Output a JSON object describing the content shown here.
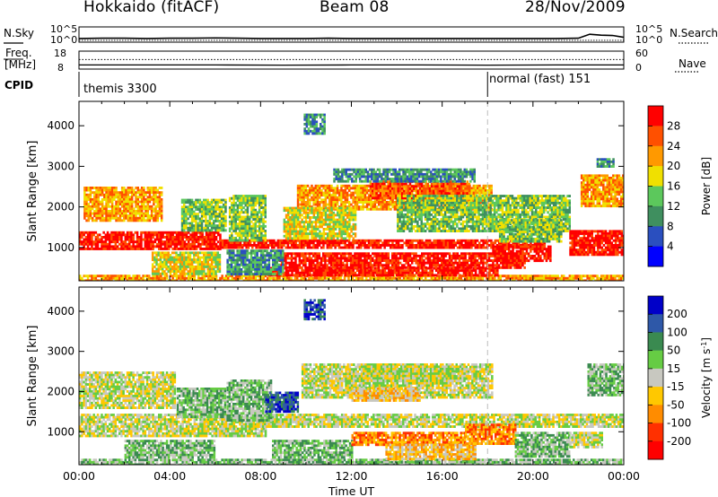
{
  "header": {
    "title": "Hokkaido (fitACF)",
    "beam": "Beam 08",
    "date": "28/Nov/2009"
  },
  "side_panels": {
    "nsky_label": "N.Sky",
    "nsearch_label": "N.Search",
    "freq_label_line1": "Freq.",
    "freq_label_line2": "[MHz]",
    "nave_label": "Nave",
    "cpid_label": "CPID",
    "noise_ticks_left": [
      "10^5",
      "10^0"
    ],
    "noise_ticks_right": [
      "10^5",
      "10^0"
    ],
    "freq_ticks": [
      "18",
      "8"
    ],
    "nave_ticks": [
      "60",
      "0"
    ]
  },
  "cpid_segments": [
    {
      "label": "themis 3300",
      "start_hour": 0,
      "end_hour": 18
    },
    {
      "label": "normal (fast) 151",
      "start_hour": 18,
      "end_hour": 24
    }
  ],
  "colors": {
    "power_scale": [
      "#0000ff",
      "#2a4fbf",
      "#3f8f5f",
      "#5cc85c",
      "#f0e000",
      "#ff9900",
      "#ff5000",
      "#ff0000"
    ],
    "velocity_scale": [
      "#0000c8",
      "#2e58a8",
      "#3a8a50",
      "#66cc44",
      "#c8c8c0",
      "#ffc800",
      "#ff8c00",
      "#ff3000",
      "#ff0000"
    ]
  },
  "chart_data": [
    {
      "type": "line",
      "name": "noise",
      "x": [
        0,
        1,
        2,
        3,
        4,
        5,
        6,
        7,
        8,
        9,
        10,
        11,
        12,
        13,
        14,
        15,
        16,
        17,
        18,
        19,
        20,
        21,
        22,
        22.5,
        23,
        23.5,
        24
      ],
      "series": [
        {
          "name": "N.Sky",
          "values": [
            1.2,
            1.3,
            1.3,
            1.2,
            1.3,
            1.3,
            1.4,
            1.3,
            1.2,
            1.2,
            1.2,
            1.3,
            1.2,
            1.2,
            1.2,
            1.2,
            1.2,
            1.2,
            1.2,
            1.2,
            1.2,
            1.2,
            1.3,
            2.6,
            2.3,
            2.2,
            1.6
          ]
        },
        {
          "name": "N.Search",
          "values": [
            0.6,
            0.6,
            0.6,
            0.6,
            0.6,
            0.6,
            0.6,
            0.6,
            0.6,
            0.6,
            0.6,
            0.6,
            0.6,
            0.6,
            0.6,
            0.6,
            0.6,
            0.6,
            0.6,
            0.6,
            0.6,
            0.6,
            0.6,
            0.6,
            0.6,
            0.6,
            0.6
          ]
        }
      ],
      "ylim": [
        0,
        5
      ],
      "xlim": [
        0,
        24
      ]
    },
    {
      "type": "line",
      "name": "freq-nave",
      "x": [
        0,
        6,
        9,
        12,
        15,
        18,
        21,
        24
      ],
      "series": [
        {
          "name": "Freq.",
          "values": [
            10.3,
            10.3,
            10.2,
            10.3,
            10.3,
            10.2,
            10.3,
            10.3
          ]
        },
        {
          "name": "Nave",
          "values": [
            32,
            32,
            32,
            32,
            32,
            32,
            32,
            32
          ]
        }
      ],
      "ylim": [
        8,
        18
      ],
      "xlim": [
        0,
        24
      ]
    },
    {
      "type": "heatmap",
      "name": "power",
      "ylabel": "Slant Range [km]",
      "colorbar_label": "Power [dB]",
      "colorbar_ticks": [
        "28",
        "24",
        "20",
        "16",
        "12",
        "8",
        "4"
      ],
      "color_bounds": [
        0,
        4,
        8,
        12,
        16,
        20,
        24,
        28,
        32
      ],
      "xlim": [
        0,
        24
      ],
      "ylim": [
        180,
        4600
      ],
      "yticks": [
        1000,
        2000,
        3000,
        4000
      ],
      "regions": [
        {
          "t": [
            0,
            6.2
          ],
          "r": [
            950,
            1400
          ],
          "level": 32
        },
        {
          "t": [
            6.2,
            20.5
          ],
          "r": [
            1000,
            1200
          ],
          "level": 28
        },
        {
          "t": [
            0,
            24
          ],
          "r": [
            200,
            330
          ],
          "level": 22
        },
        {
          "t": [
            0.2,
            3.6
          ],
          "r": [
            1650,
            2500
          ],
          "level": 22
        },
        {
          "t": [
            8.3,
            18.4
          ],
          "r": [
            330,
            520
          ],
          "level": 31
        },
        {
          "t": [
            8.8,
            19.6
          ],
          "r": [
            520,
            880
          ],
          "level": 28
        },
        {
          "t": [
            18.2,
            20.8
          ],
          "r": [
            650,
            1050
          ],
          "level": 29
        },
        {
          "t": [
            21.6,
            24
          ],
          "r": [
            800,
            1430
          ],
          "level": 30
        },
        {
          "t": [
            9.6,
            18.2
          ],
          "r": [
            1950,
            2550
          ],
          "level": 20
        },
        {
          "t": [
            12.8,
            17.2
          ],
          "r": [
            2200,
            2650
          ],
          "level": 26
        },
        {
          "t": [
            6.6,
            8.2
          ],
          "r": [
            1200,
            2300
          ],
          "level": 14
        },
        {
          "t": [
            4.5,
            6.5
          ],
          "r": [
            1400,
            2200
          ],
          "level": 13
        },
        {
          "t": [
            22.1,
            24
          ],
          "r": [
            2000,
            2800
          ],
          "level": 22
        },
        {
          "t": [
            9.0,
            12.2
          ],
          "r": [
            1200,
            2000
          ],
          "level": 16
        },
        {
          "t": [
            3.2,
            6.2
          ],
          "r": [
            350,
            900
          ],
          "level": 18
        },
        {
          "t": [
            6.5,
            9.0
          ],
          "r": [
            350,
            950
          ],
          "level": 10
        },
        {
          "t": [
            14.0,
            21.6
          ],
          "r": [
            1400,
            2300
          ],
          "level": 14
        },
        {
          "t": [
            9.9,
            10.8
          ],
          "r": [
            3800,
            4300
          ],
          "level": 8
        },
        {
          "t": [
            11.2,
            17.4
          ],
          "r": [
            2650,
            2950
          ],
          "level": 10
        },
        {
          "t": [
            18.5,
            21.2
          ],
          "r": [
            1150,
            1700
          ],
          "level": 12
        },
        {
          "t": [
            22.8,
            23.5
          ],
          "r": [
            3000,
            3200
          ],
          "level": 10
        }
      ]
    },
    {
      "type": "heatmap",
      "name": "velocity",
      "ylabel": "Slant Range [km]",
      "xlabel": "Time UT",
      "colorbar_label": "Velocity [m s-1]",
      "colorbar_ticks": [
        "200",
        "100",
        "50",
        "15",
        "-15",
        "-50",
        "-100",
        "-200"
      ],
      "color_bounds": [
        -300,
        -200,
        -100,
        -50,
        -15,
        15,
        50,
        100,
        200,
        300
      ],
      "xlim": [
        0,
        24
      ],
      "xticks": [
        "00:00",
        "04:00",
        "08:00",
        "12:00",
        "16:00",
        "20:00",
        "00:00"
      ],
      "ylim": [
        180,
        4600
      ],
      "yticks": [
        1000,
        2000,
        3000,
        4000
      ],
      "regions": [
        {
          "t": [
            0,
            8.2
          ],
          "r": [
            900,
            1450
          ],
          "level": 0
        },
        {
          "t": [
            0,
            4.2
          ],
          "r": [
            1600,
            2500
          ],
          "level": 0
        },
        {
          "t": [
            7.8,
            24
          ],
          "r": [
            1150,
            1450
          ],
          "level": 0
        },
        {
          "t": [
            9.8,
            18.2
          ],
          "r": [
            1850,
            2700
          ],
          "level": 0
        },
        {
          "t": [
            12.5,
            17.0
          ],
          "r": [
            2300,
            2650
          ],
          "level": 0
        },
        {
          "t": [
            0,
            24
          ],
          "r": [
            200,
            330
          ],
          "level": 25
        },
        {
          "t": [
            8.5,
            12.0
          ],
          "r": [
            350,
            800
          ],
          "level": 35
        },
        {
          "t": [
            12.0,
            17.0
          ],
          "r": [
            700,
            1000
          ],
          "level": -70
        },
        {
          "t": [
            13.5,
            17.5
          ],
          "r": [
            330,
            700
          ],
          "level": -30
        },
        {
          "t": [
            17.0,
            19.2
          ],
          "r": [
            700,
            1200
          ],
          "level": -90
        },
        {
          "t": [
            19.2,
            21.6
          ],
          "r": [
            400,
            1000
          ],
          "level": 40
        },
        {
          "t": [
            21.6,
            23.0
          ],
          "r": [
            600,
            1000
          ],
          "level": 10
        },
        {
          "t": [
            6.5,
            8.5
          ],
          "r": [
            1300,
            2300
          ],
          "level": 25
        },
        {
          "t": [
            4.3,
            6.4
          ],
          "r": [
            1400,
            2100
          ],
          "level": 30
        },
        {
          "t": [
            9.9,
            10.8
          ],
          "r": [
            3800,
            4300
          ],
          "level": 110
        },
        {
          "t": [
            12.0,
            15.0
          ],
          "r": [
            1800,
            2100
          ],
          "level": -40
        },
        {
          "t": [
            22.4,
            24
          ],
          "r": [
            1900,
            2700
          ],
          "level": 30
        },
        {
          "t": [
            2.0,
            6.0
          ],
          "r": [
            350,
            800
          ],
          "level": 30
        },
        {
          "t": [
            8.2,
            9.6
          ],
          "r": [
            1500,
            2000
          ],
          "level": 120
        }
      ]
    }
  ]
}
